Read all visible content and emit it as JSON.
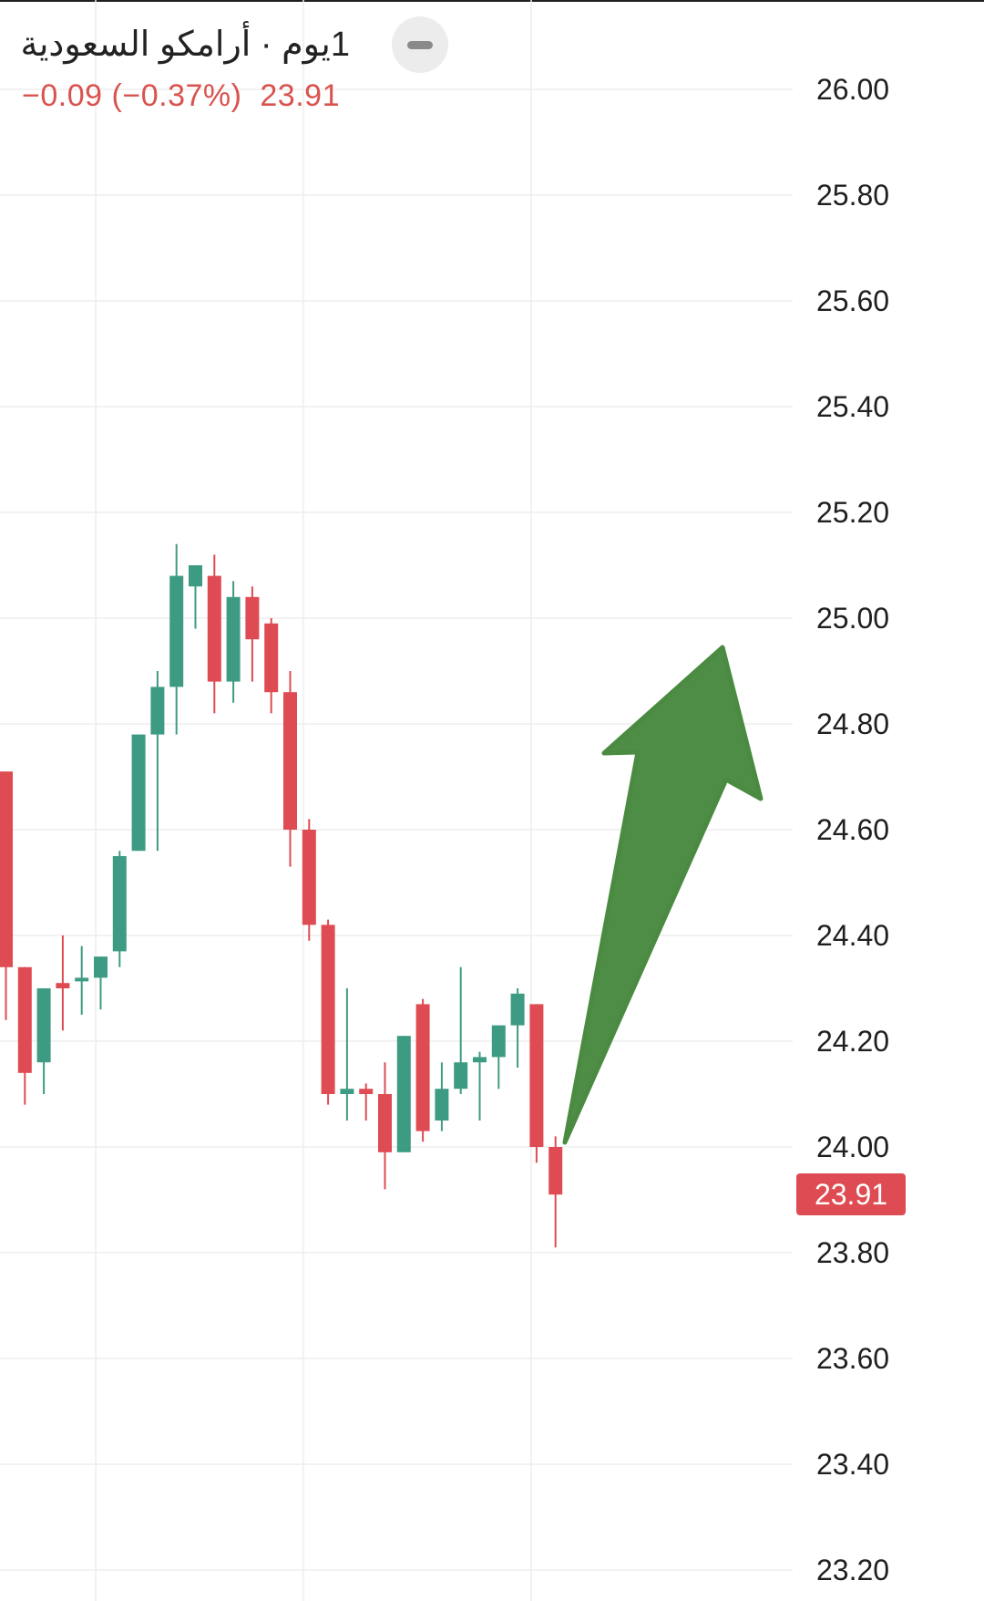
{
  "header": {
    "title": "1يوم · أرامكو السعودية",
    "change": "−0.09",
    "change_pct": "(−0.37%)",
    "last_price": "23.91",
    "collapse_icon": "minus-icon"
  },
  "colors": {
    "up": "#3e9b83",
    "down": "#df4b52",
    "grid": "#eeeeee",
    "arrow": "#4e8d45",
    "price_tag": "#df4b52"
  },
  "chart_data": {
    "type": "candlestick",
    "ylim": [
      23.16,
      26.14
    ],
    "yticks": [
      "26.00",
      "25.80",
      "25.60",
      "25.40",
      "25.20",
      "25.00",
      "24.80",
      "24.60",
      "24.40",
      "24.20",
      "24.00",
      "23.80",
      "23.60",
      "23.40",
      "23.20"
    ],
    "last_price_label": "23.91",
    "last_price": 23.91,
    "candles": [
      {
        "o": 24.71,
        "h": 24.71,
        "l": 24.24,
        "c": 24.34
      },
      {
        "o": 24.34,
        "h": 24.34,
        "l": 24.08,
        "c": 24.14
      },
      {
        "o": 24.16,
        "h": 24.3,
        "l": 24.1,
        "c": 24.3
      },
      {
        "o": 24.31,
        "h": 24.4,
        "l": 24.22,
        "c": 24.3
      },
      {
        "o": 24.32,
        "h": 24.38,
        "l": 24.25,
        "c": 24.32
      },
      {
        "o": 24.32,
        "h": 24.36,
        "l": 24.26,
        "c": 24.36
      },
      {
        "o": 24.37,
        "h": 24.56,
        "l": 24.34,
        "c": 24.55
      },
      {
        "o": 24.56,
        "h": 24.78,
        "l": 24.56,
        "c": 24.78
      },
      {
        "o": 24.78,
        "h": 24.9,
        "l": 24.56,
        "c": 24.87
      },
      {
        "o": 24.87,
        "h": 25.14,
        "l": 24.78,
        "c": 25.08
      },
      {
        "o": 25.06,
        "h": 25.1,
        "l": 24.98,
        "c": 25.1
      },
      {
        "o": 25.08,
        "h": 25.12,
        "l": 24.82,
        "c": 24.88
      },
      {
        "o": 24.88,
        "h": 25.07,
        "l": 24.84,
        "c": 25.04
      },
      {
        "o": 25.04,
        "h": 25.06,
        "l": 24.88,
        "c": 24.96
      },
      {
        "o": 24.99,
        "h": 25.0,
        "l": 24.82,
        "c": 24.86
      },
      {
        "o": 24.86,
        "h": 24.9,
        "l": 24.53,
        "c": 24.6
      },
      {
        "o": 24.6,
        "h": 24.62,
        "l": 24.39,
        "c": 24.42
      },
      {
        "o": 24.42,
        "h": 24.43,
        "l": 24.08,
        "c": 24.1
      },
      {
        "o": 24.1,
        "h": 24.3,
        "l": 24.05,
        "c": 24.11
      },
      {
        "o": 24.11,
        "h": 24.12,
        "l": 24.05,
        "c": 24.1
      },
      {
        "o": 24.1,
        "h": 24.16,
        "l": 23.92,
        "c": 23.99
      },
      {
        "o": 23.99,
        "h": 24.21,
        "l": 23.99,
        "c": 24.21
      },
      {
        "o": 24.27,
        "h": 24.28,
        "l": 24.01,
        "c": 24.03
      },
      {
        "o": 24.05,
        "h": 24.16,
        "l": 24.03,
        "c": 24.11
      },
      {
        "o": 24.11,
        "h": 24.34,
        "l": 24.1,
        "c": 24.16
      },
      {
        "o": 24.16,
        "h": 24.18,
        "l": 24.05,
        "c": 24.17
      },
      {
        "o": 24.17,
        "h": 24.23,
        "l": 24.11,
        "c": 24.23
      },
      {
        "o": 24.23,
        "h": 24.3,
        "l": 24.15,
        "c": 24.29
      },
      {
        "o": 24.27,
        "h": 24.27,
        "l": 23.97,
        "c": 24.0
      },
      {
        "o": 24.0,
        "h": 24.02,
        "l": 23.81,
        "c": 23.91
      }
    ]
  }
}
